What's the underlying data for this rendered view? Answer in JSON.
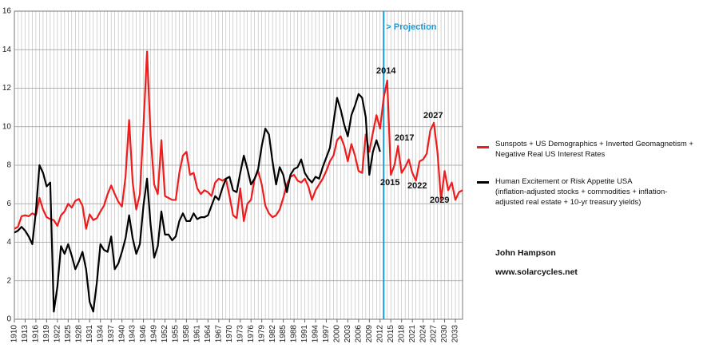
{
  "chart_data": {
    "type": "line",
    "x": [
      1910,
      1911,
      1912,
      1913,
      1914,
      1915,
      1916,
      1917,
      1918,
      1919,
      1920,
      1921,
      1922,
      1923,
      1924,
      1925,
      1926,
      1927,
      1928,
      1929,
      1930,
      1931,
      1932,
      1933,
      1934,
      1935,
      1936,
      1937,
      1938,
      1939,
      1940,
      1941,
      1942,
      1943,
      1944,
      1945,
      1946,
      1947,
      1948,
      1949,
      1950,
      1951,
      1952,
      1953,
      1954,
      1955,
      1956,
      1957,
      1958,
      1959,
      1960,
      1961,
      1962,
      1963,
      1964,
      1965,
      1966,
      1967,
      1968,
      1969,
      1970,
      1971,
      1972,
      1973,
      1974,
      1975,
      1976,
      1977,
      1978,
      1979,
      1980,
      1981,
      1982,
      1983,
      1984,
      1985,
      1986,
      1987,
      1988,
      1989,
      1990,
      1991,
      1992,
      1993,
      1994,
      1995,
      1996,
      1997,
      1998,
      1999,
      2000,
      2001,
      2002,
      2003,
      2004,
      2005,
      2006,
      2007,
      2008,
      2009,
      2010,
      2011,
      2012,
      2013,
      2014,
      2015,
      2016,
      2017,
      2018,
      2019,
      2020,
      2021,
      2022,
      2023,
      2024,
      2025,
      2026,
      2027,
      2028,
      2029,
      2030,
      2031,
      2032,
      2033,
      2034,
      2035
    ],
    "series": [
      {
        "name": "Sunspots + US Demographics + Inverted Geomagnetism + Negative Real US Interest Rates",
        "color": "#ee1c1c",
        "values": [
          4.7,
          4.8,
          5.35,
          5.4,
          5.35,
          5.5,
          5.4,
          6.3,
          5.7,
          5.3,
          5.2,
          5.15,
          4.85,
          5.4,
          5.6,
          6.0,
          5.8,
          6.15,
          6.25,
          5.9,
          4.7,
          5.45,
          5.15,
          5.25,
          5.6,
          5.9,
          6.5,
          6.95,
          6.5,
          6.1,
          5.85,
          7.4,
          10.35,
          7.1,
          5.7,
          6.5,
          10.0,
          13.9,
          9.5,
          7.0,
          6.5,
          9.3,
          6.4,
          6.3,
          6.2,
          6.2,
          7.6,
          8.5,
          8.7,
          7.5,
          7.6,
          6.8,
          6.5,
          6.7,
          6.6,
          6.4,
          7.1,
          7.3,
          7.2,
          7.3,
          6.4,
          5.4,
          5.25,
          6.8,
          5.1,
          6.0,
          6.2,
          7.3,
          7.7,
          7.0,
          5.9,
          5.5,
          5.3,
          5.4,
          5.7,
          6.3,
          7.0,
          7.4,
          7.5,
          7.2,
          7.1,
          7.3,
          6.9,
          6.2,
          6.7,
          7.0,
          7.3,
          7.7,
          8.2,
          8.5,
          9.3,
          9.5,
          9.0,
          8.2,
          9.1,
          8.5,
          7.7,
          7.6,
          9.6,
          8.7,
          9.7,
          10.6,
          9.9,
          11.5,
          12.4,
          7.5,
          8.0,
          9.0,
          7.6,
          7.9,
          8.3,
          7.6,
          7.2,
          8.2,
          8.3,
          8.6,
          9.8,
          10.2,
          8.7,
          6.2,
          7.7,
          6.7,
          7.1,
          6.2,
          6.6,
          6.7
        ]
      },
      {
        "name": "Human Excitement or Risk Appetite USA",
        "color": "#000000",
        "values": [
          4.5,
          4.6,
          4.8,
          4.6,
          4.3,
          3.9,
          5.6,
          8.0,
          7.6,
          6.9,
          7.1,
          0.4,
          1.7,
          3.8,
          3.4,
          3.9,
          3.3,
          2.6,
          3.0,
          3.5,
          2.6,
          0.9,
          0.4,
          1.9,
          3.9,
          3.6,
          3.5,
          4.3,
          2.6,
          2.9,
          3.5,
          4.2,
          5.4,
          4.2,
          3.4,
          3.9,
          5.9,
          7.3,
          4.9,
          3.2,
          3.8,
          5.6,
          4.4,
          4.4,
          4.1,
          4.3,
          5.1,
          5.5,
          5.1,
          5.1,
          5.5,
          5.2,
          5.3,
          5.3,
          5.4,
          5.9,
          6.4,
          6.2,
          6.8,
          7.3,
          7.4,
          6.7,
          6.6,
          7.6,
          8.5,
          7.8,
          7.0,
          7.3,
          7.8,
          9.0,
          9.9,
          9.6,
          8.2,
          7.0,
          7.9,
          7.5,
          6.6,
          7.5,
          7.8,
          7.9,
          8.3,
          7.6,
          7.3,
          7.1,
          7.4,
          7.3,
          7.9,
          8.4,
          8.9,
          10.2,
          11.5,
          10.9,
          10.1,
          9.5,
          10.6,
          11.1,
          11.7,
          11.5,
          10.5,
          7.5,
          8.7,
          9.3,
          8.7,
          null,
          null,
          null,
          null,
          null,
          null,
          null,
          null,
          null,
          null,
          null,
          null,
          null,
          null,
          null,
          null,
          null,
          null,
          null,
          null,
          null,
          null,
          null
        ]
      }
    ],
    "legend_note": "(inflation-adjusted stocks + commodities + inflation-adjusted real estate + 10-yr treasury yields)",
    "projection_label": "> Projection",
    "projection_x": 2013,
    "projection_color": "#1a9ad6",
    "annotations": [
      "2014",
      "2017",
      "2015",
      "2022",
      "2027",
      "2029"
    ],
    "credits": [
      "John Hampson",
      "www.solarcycles.net"
    ],
    "xlim": [
      1910,
      2035
    ],
    "xticks": [
      1910,
      1913,
      1916,
      1919,
      1922,
      1925,
      1928,
      1931,
      1934,
      1937,
      1940,
      1943,
      1946,
      1949,
      1952,
      1955,
      1958,
      1961,
      1964,
      1967,
      1970,
      1973,
      1976,
      1979,
      1982,
      1985,
      1988,
      1991,
      1994,
      1997,
      2000,
      2003,
      2006,
      2009,
      2012,
      2015,
      2018,
      2021,
      2024,
      2027,
      2030,
      2033
    ],
    "ylim": [
      0,
      16
    ],
    "yticks": [
      0,
      2,
      4,
      6,
      8,
      10,
      12,
      14,
      16
    ],
    "grid": true
  }
}
